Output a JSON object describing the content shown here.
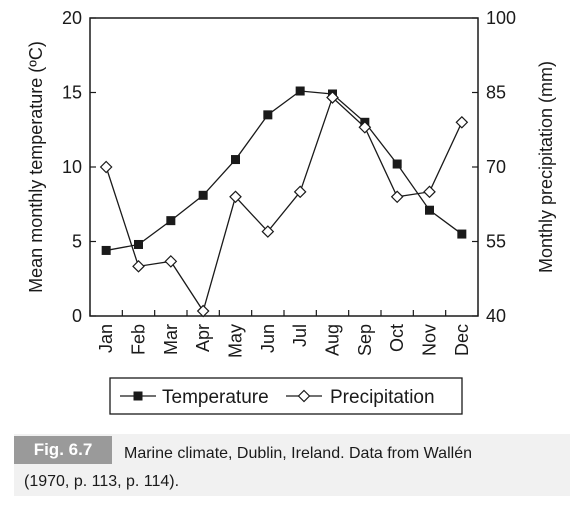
{
  "chart_data": {
    "type": "line",
    "categories": [
      "Jan",
      "Feb",
      "Mar",
      "Apr",
      "May",
      "Jun",
      "Jul",
      "Aug",
      "Sep",
      "Oct",
      "Nov",
      "Dec"
    ],
    "series": [
      {
        "name": "Temperature",
        "axis": "left",
        "marker": "filled-square",
        "values": [
          4.4,
          4.8,
          6.4,
          8.1,
          10.5,
          13.5,
          15.1,
          14.9,
          13.0,
          10.2,
          7.1,
          5.5
        ]
      },
      {
        "name": "Precipitation",
        "axis": "right",
        "marker": "open-diamond",
        "values": [
          70,
          50,
          51,
          41,
          64,
          57,
          65,
          84,
          78,
          64,
          65,
          79
        ]
      }
    ],
    "ylabel_left": "Mean monthly temperature (ºC)",
    "ylabel_right": "Monthly precipitation (mm)",
    "ylim_left": [
      0,
      20
    ],
    "ylim_right": [
      40,
      100
    ],
    "yticks_left": [
      "0",
      "5",
      "10",
      "15",
      "20"
    ],
    "yticks_right": [
      "40",
      "55",
      "70",
      "85",
      "100"
    ],
    "grid": false,
    "legend": {
      "position": "bottom",
      "entries": [
        "Temperature",
        "Precipitation"
      ]
    }
  },
  "caption": {
    "label": "Fig. 6.7",
    "text": "Marine climate, Dublin, Ireland. Data from Wallén",
    "text2": "(1970, p. 113, p. 114)."
  }
}
